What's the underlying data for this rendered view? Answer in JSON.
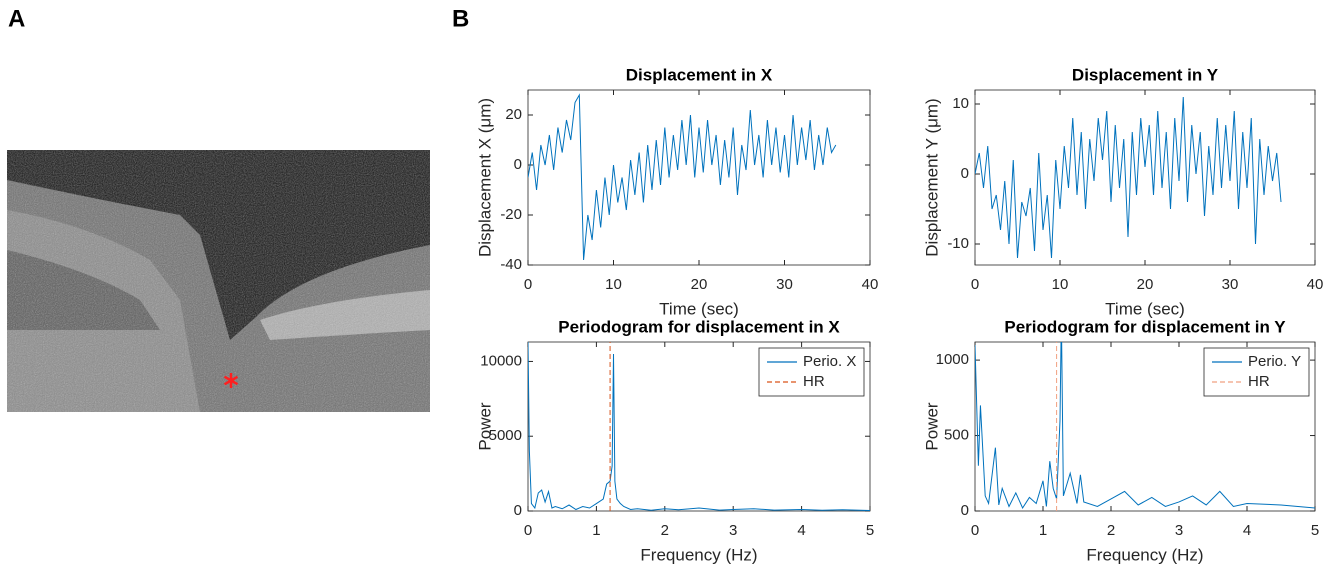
{
  "panels": [
    "A",
    "B"
  ],
  "chart_data": [
    {
      "type": "line",
      "title": "Displacement in X",
      "xlabel": "Time (sec)",
      "ylabel": "Displacement X (μm)",
      "x": [
        0,
        0.5,
        1,
        1.5,
        2,
        2.5,
        3,
        3.5,
        4,
        4.5,
        5,
        5.5,
        6,
        6.5,
        7,
        7.5,
        8,
        8.5,
        9,
        9.5,
        10,
        10.5,
        11,
        11.5,
        12,
        12.5,
        13,
        13.5,
        14,
        14.5,
        15,
        15.5,
        16,
        16.5,
        17,
        17.5,
        18,
        18.5,
        19,
        19.5,
        20,
        20.5,
        21,
        21.5,
        22,
        22.5,
        23,
        23.5,
        24,
        24.5,
        25,
        25.5,
        26,
        26.5,
        27,
        27.5,
        28,
        28.5,
        29,
        29.5,
        30,
        30.5,
        31,
        31.5,
        32,
        32.5,
        33,
        33.5,
        34,
        34.5,
        35,
        35.5,
        36
      ],
      "series": [
        {
          "color": "#0072bd",
          "values": [
            -5,
            5,
            -10,
            8,
            0,
            12,
            -2,
            15,
            5,
            18,
            10,
            25,
            28,
            -38,
            -20,
            -30,
            -10,
            -25,
            -5,
            -20,
            0,
            -15,
            -5,
            -18,
            2,
            -12,
            5,
            -15,
            8,
            -10,
            10,
            -8,
            15,
            -5,
            12,
            -2,
            18,
            0,
            20,
            -5,
            15,
            -3,
            18,
            0,
            12,
            -8,
            10,
            -5,
            15,
            -12,
            8,
            -2,
            22,
            0,
            12,
            -5,
            18,
            0,
            15,
            -3,
            12,
            -5,
            20,
            0,
            15,
            2,
            18,
            -2,
            12,
            0,
            15,
            5,
            8
          ]
        }
      ],
      "xlim": [
        0,
        40
      ],
      "ylim": [
        -40,
        30
      ],
      "xticks": [
        0,
        10,
        20,
        30,
        40
      ],
      "yticks": [
        -40,
        -20,
        0,
        20
      ]
    },
    {
      "type": "line",
      "title": "Displacement in Y",
      "xlabel": "Time (sec)",
      "ylabel": "Displacement Y (μm)",
      "x": [
        0,
        0.5,
        1,
        1.5,
        2,
        2.5,
        3,
        3.5,
        4,
        4.5,
        5,
        5.5,
        6,
        6.5,
        7,
        7.5,
        8,
        8.5,
        9,
        9.5,
        10,
        10.5,
        11,
        11.5,
        12,
        12.5,
        13,
        13.5,
        14,
        14.5,
        15,
        15.5,
        16,
        16.5,
        17,
        17.5,
        18,
        18.5,
        19,
        19.5,
        20,
        20.5,
        21,
        21.5,
        22,
        22.5,
        23,
        23.5,
        24,
        24.5,
        25,
        25.5,
        26,
        26.5,
        27,
        27.5,
        28,
        28.5,
        29,
        29.5,
        30,
        30.5,
        31,
        31.5,
        32,
        32.5,
        33,
        33.5,
        34,
        34.5,
        35,
        35.5,
        36
      ],
      "series": [
        {
          "color": "#0072bd",
          "values": [
            0,
            3,
            -2,
            4,
            -5,
            -3,
            -8,
            -1,
            -10,
            2,
            -12,
            -4,
            -6,
            -2,
            -11,
            3,
            -8,
            -3,
            -12,
            2,
            -5,
            4,
            -2,
            8,
            -3,
            6,
            -5,
            5,
            -1,
            8,
            2,
            9,
            -4,
            7,
            -2,
            5,
            -9,
            6,
            -3,
            8,
            1,
            7,
            -3,
            9,
            -2,
            6,
            -5,
            8,
            -1,
            11,
            -4,
            7,
            0,
            6,
            -6,
            4,
            -3,
            8,
            -2,
            7,
            -1,
            9,
            -5,
            6,
            -2,
            8,
            -10,
            5,
            -3,
            4,
            -1,
            3,
            -4
          ]
        }
      ],
      "xlim": [
        0,
        40
      ],
      "ylim": [
        -13,
        12
      ],
      "xticks": [
        0,
        10,
        20,
        30,
        40
      ],
      "yticks": [
        -10,
        0,
        10
      ]
    },
    {
      "type": "line",
      "title": "Periodogram for displacement in X",
      "xlabel": "Frequency (Hz)",
      "ylabel": "Power",
      "legend": "northeast",
      "series": [
        {
          "name": "Perio. X",
          "color": "#0072bd",
          "dash": false,
          "x": [
            0,
            0.02,
            0.05,
            0.1,
            0.15,
            0.2,
            0.25,
            0.3,
            0.35,
            0.4,
            0.5,
            0.6,
            0.7,
            0.8,
            0.9,
            1.0,
            1.1,
            1.15,
            1.2,
            1.23,
            1.25,
            1.27,
            1.3,
            1.35,
            1.4,
            1.5,
            1.6,
            1.8,
            2.0,
            2.2,
            2.5,
            2.8,
            3.0,
            3.3,
            3.6,
            4.0,
            4.3,
            4.6,
            5.0
          ],
          "values": [
            11300,
            4000,
            500,
            200,
            1200,
            1400,
            600,
            1300,
            200,
            300,
            150,
            400,
            100,
            300,
            200,
            500,
            800,
            1800,
            2000,
            3000,
            10500,
            2000,
            800,
            500,
            300,
            100,
            150,
            50,
            150,
            80,
            200,
            60,
            100,
            150,
            60,
            100,
            50,
            80,
            30
          ]
        },
        {
          "name": "HR",
          "color": "#d95319",
          "dash": true,
          "x": [
            1.2,
            1.2
          ],
          "values": [
            0,
            11300
          ]
        }
      ],
      "xlim": [
        0,
        5
      ],
      "ylim": [
        0,
        11300
      ],
      "xticks": [
        0,
        1,
        2,
        3,
        4,
        5
      ],
      "yticks": [
        0,
        5000,
        10000
      ]
    },
    {
      "type": "line",
      "title": "Periodogram for displacement in Y",
      "xlabel": "Frequency (Hz)",
      "ylabel": "Power",
      "legend": "northeast",
      "series": [
        {
          "name": "Perio. Y",
          "color": "#0072bd",
          "dash": false,
          "x": [
            0,
            0.05,
            0.08,
            0.15,
            0.2,
            0.3,
            0.35,
            0.4,
            0.5,
            0.6,
            0.7,
            0.8,
            0.9,
            1.0,
            1.05,
            1.1,
            1.15,
            1.2,
            1.25,
            1.27,
            1.3,
            1.4,
            1.5,
            1.55,
            1.6,
            1.8,
            2.0,
            2.2,
            2.4,
            2.6,
            2.8,
            3.0,
            3.2,
            3.4,
            3.6,
            3.8,
            4.0,
            4.5,
            5.0
          ],
          "values": [
            1100,
            300,
            700,
            100,
            50,
            420,
            40,
            150,
            30,
            120,
            20,
            90,
            50,
            200,
            30,
            330,
            150,
            80,
            600,
            1300,
            100,
            250,
            50,
            240,
            60,
            30,
            80,
            130,
            40,
            90,
            30,
            60,
            100,
            40,
            130,
            30,
            50,
            40,
            20
          ]
        },
        {
          "name": "HR",
          "color": "#f0a080",
          "dash": true,
          "x": [
            1.2,
            1.2
          ],
          "values": [
            0,
            1120
          ]
        }
      ],
      "xlim": [
        0,
        5
      ],
      "ylim": [
        0,
        1120
      ],
      "xticks": [
        0,
        1,
        2,
        3,
        4,
        5
      ],
      "yticks": [
        0,
        500,
        1000
      ]
    }
  ]
}
